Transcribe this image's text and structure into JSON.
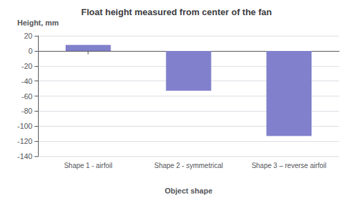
{
  "chart_data": {
    "type": "bar",
    "title": "Float height measured from center of the fan",
    "xlabel": "Object shape",
    "ylabel": "Height, mm",
    "categories": [
      "Shape 1 - airfoil",
      "Shape 2 - symmetrical",
      "Shape 3 – reverse airfoil"
    ],
    "values": [
      8,
      -53,
      -113
    ],
    "color": "#8080cc",
    "ylim": [
      -140,
      20
    ],
    "yticks": [
      20,
      0,
      -20,
      -40,
      -60,
      -80,
      -100,
      -120,
      -140
    ],
    "grid": true
  }
}
